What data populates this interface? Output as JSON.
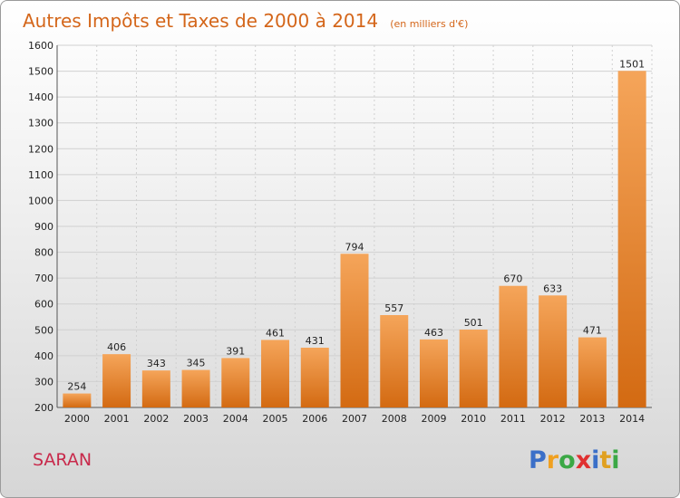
{
  "title": "Autres Impôts et Taxes de 2000 à 2014",
  "unit_label": "(en milliers d'€)",
  "commune": "SARAN",
  "logo": {
    "letters": [
      "P",
      "r",
      "o",
      "x",
      "i",
      "t",
      "i"
    ],
    "colors": [
      "#3b6fc8",
      "#f0a020",
      "#3ba845",
      "#e03030",
      "#3b6fc8",
      "#e0a020",
      "#3ba845"
    ]
  },
  "colors": {
    "bar_light": "#f5a55a",
    "bar_dark": "#d36a12",
    "grid": "#d0d0d0",
    "title": "#d4661a",
    "commune": "#c8294b"
  },
  "chart_data": {
    "type": "bar",
    "categories": [
      "2000",
      "2001",
      "2002",
      "2003",
      "2004",
      "2005",
      "2006",
      "2007",
      "2008",
      "2009",
      "2010",
      "2011",
      "2012",
      "2013",
      "2014"
    ],
    "values": [
      254,
      406,
      343,
      345,
      391,
      461,
      431,
      794,
      557,
      463,
      501,
      670,
      633,
      471,
      1501
    ],
    "ylim": [
      200,
      1600
    ],
    "yticks": [
      "200",
      "300",
      "400",
      "500",
      "600",
      "700",
      "800",
      "900",
      "1000",
      "1100",
      "1200",
      "1300",
      "1400",
      "1500",
      "1600"
    ],
    "grid": true,
    "legend": "none"
  }
}
